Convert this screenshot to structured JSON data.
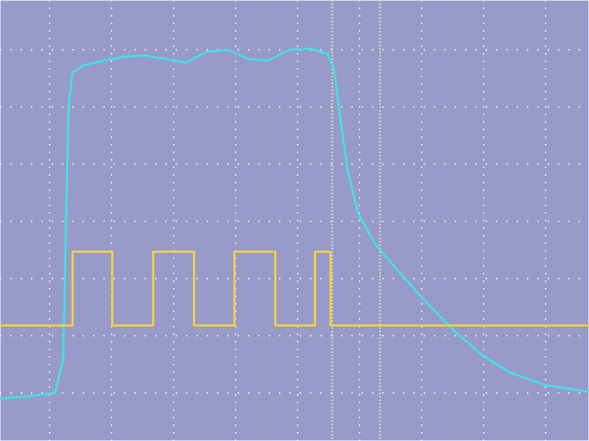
{
  "chart_data": {
    "type": "line",
    "xlim": [
      -0.8,
      8.7
    ],
    "xticks": [
      0,
      1,
      2,
      3,
      4,
      5,
      6,
      7,
      8
    ],
    "ylim": [
      -0.84,
      6.87
    ],
    "yticks": [
      0,
      1,
      2,
      3,
      4,
      5,
      6
    ],
    "grid": true,
    "tick_labels": false,
    "cursors": [
      4.56,
      5.33
    ],
    "series": [
      {
        "color": "#3fe3df",
        "line_style": "solid",
        "x": [
          -0.8,
          -0.36,
          0.09,
          0.22,
          0.27,
          0.31,
          0.37,
          0.53,
          0.87,
          1.2,
          1.53,
          1.87,
          2.2,
          2.53,
          2.87,
          3.2,
          3.53,
          3.87,
          4.2,
          4.48,
          4.59,
          4.7,
          4.81,
          4.98,
          5.26,
          5.64,
          6.09,
          6.53,
          6.98,
          7.42,
          7.98,
          8.7
        ],
        "values": [
          -0.1,
          -0.06,
          0,
          0.6,
          3.25,
          5.06,
          5.6,
          5.72,
          5.81,
          5.88,
          5.9,
          5.84,
          5.78,
          5.96,
          6.0,
          5.84,
          5.81,
          6.0,
          6.02,
          5.93,
          5.66,
          4.7,
          3.86,
          3.13,
          2.59,
          2.11,
          1.57,
          1.08,
          0.66,
          0.36,
          0.14,
          0.02
        ]
      },
      {
        "color": "#f2d43c",
        "line_style": "solid",
        "x": [
          -0.8,
          0.37,
          0.37,
          1.01,
          1.01,
          1.67,
          1.67,
          2.33,
          2.33,
          2.98,
          2.98,
          3.64,
          3.64,
          4.28,
          4.28,
          4.53,
          4.53,
          8.7
        ],
        "values": [
          1.18,
          1.18,
          2.47,
          2.47,
          1.18,
          1.18,
          2.47,
          2.47,
          1.18,
          1.18,
          2.47,
          2.47,
          1.18,
          1.18,
          2.47,
          2.47,
          1.18,
          1.18
        ]
      }
    ]
  }
}
